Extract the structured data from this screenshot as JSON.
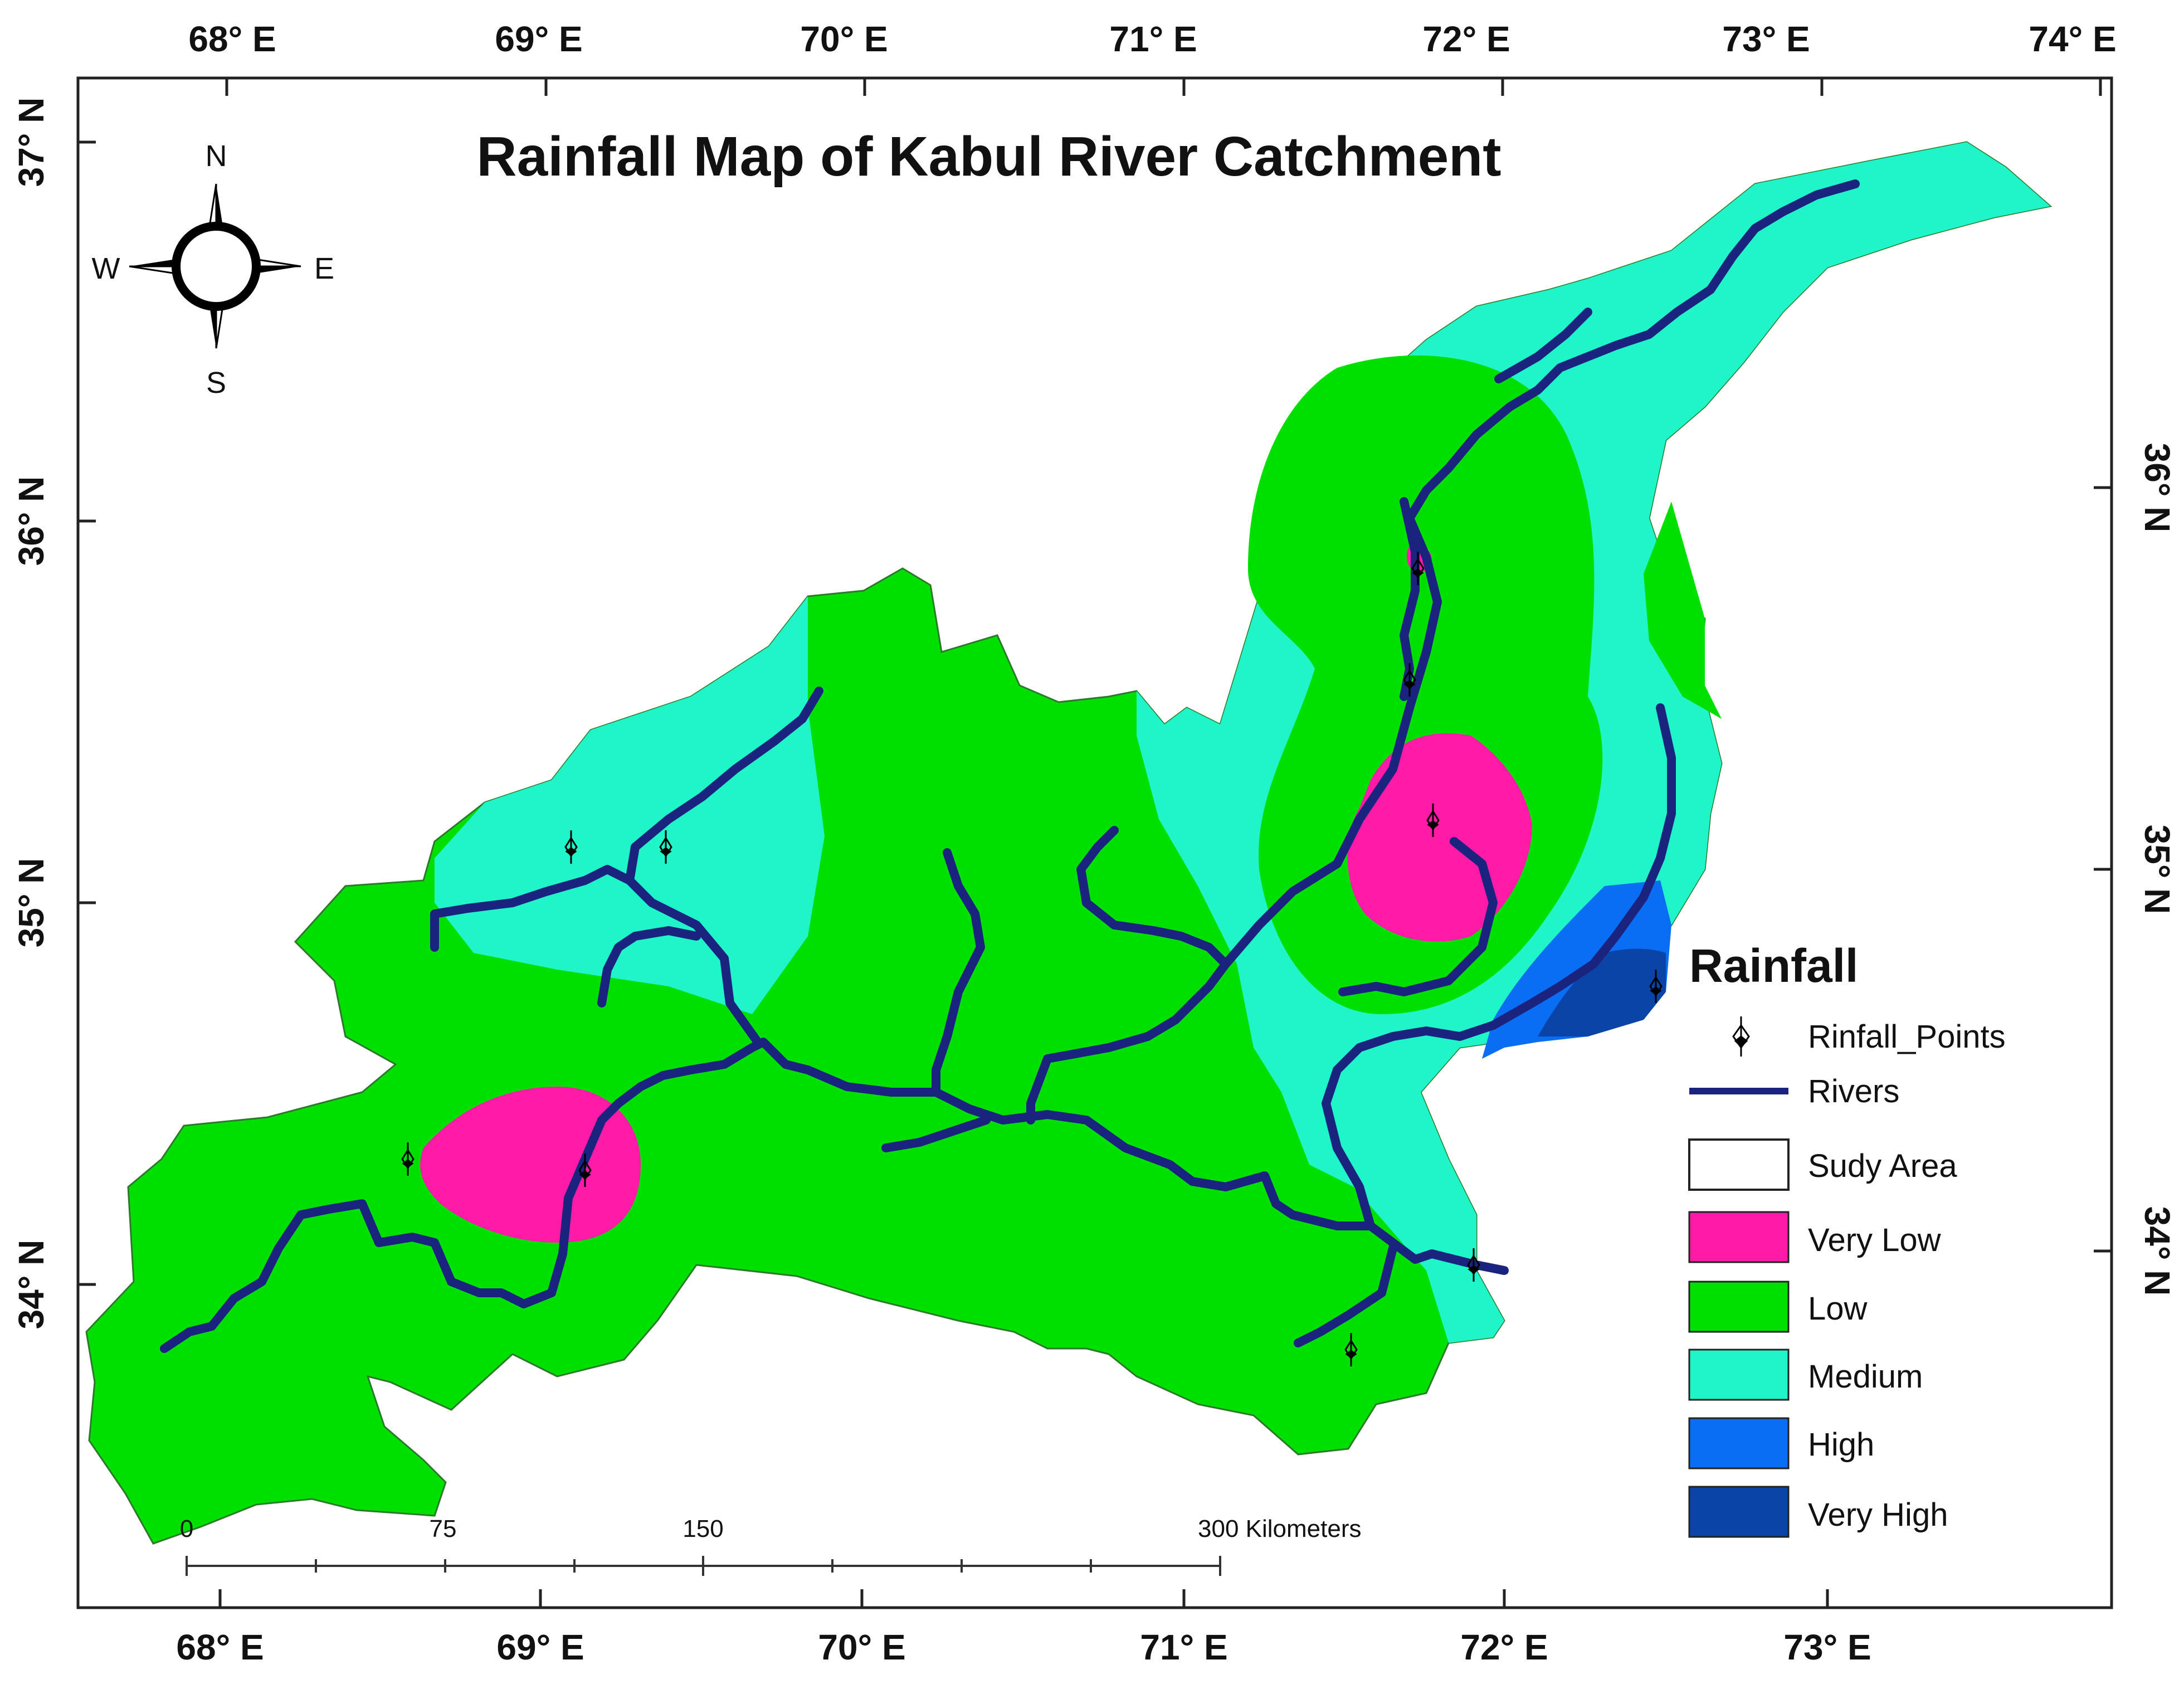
{
  "map": {
    "title": "Rainfall Map of Kabul River Catchment",
    "lon_ticks_top": [
      "68° E",
      "69° E",
      "70° E",
      "71° E",
      "72° E",
      "73° E",
      "74° E"
    ],
    "lon_ticks_bottom": [
      "68° E",
      "69° E",
      "70° E",
      "71° E",
      "72° E",
      "73° E"
    ],
    "lat_ticks_left": [
      "37° N",
      "36° N",
      "35° N",
      "34° N"
    ],
    "lat_ticks_right": [
      "36° N",
      "35° N",
      "34° N"
    ],
    "compass": {
      "n": "N",
      "s": "S",
      "e": "E",
      "w": "W"
    },
    "scale_bar": {
      "labels": [
        "0",
        "75",
        "150",
        "300 Kilometers"
      ]
    },
    "legend": {
      "title": "Rainfall",
      "items": [
        {
          "label": "Rinfall_Points",
          "symbol": "point"
        },
        {
          "label": "Rivers",
          "symbol": "line",
          "color": "#1a237e"
        },
        {
          "label": "Sudy Area",
          "symbol": "box",
          "color": "#ffffff"
        },
        {
          "label": "Very Low",
          "symbol": "box",
          "color": "#ff1aa8"
        },
        {
          "label": "Low",
          "symbol": "box",
          "color": "#00e000"
        },
        {
          "label": "Medium",
          "symbol": "box",
          "color": "#1ff5c8"
        },
        {
          "label": "High",
          "symbol": "box",
          "color": "#0a6ef5"
        },
        {
          "label": "Very High",
          "symbol": "box",
          "color": "#0a44a6"
        }
      ]
    },
    "colors": {
      "very_low": "#ff1aa8",
      "low": "#00e000",
      "medium": "#1ff5c8",
      "high": "#0a6ef5",
      "very_high": "#0a44a6",
      "rivers": "#1a237e"
    }
  }
}
